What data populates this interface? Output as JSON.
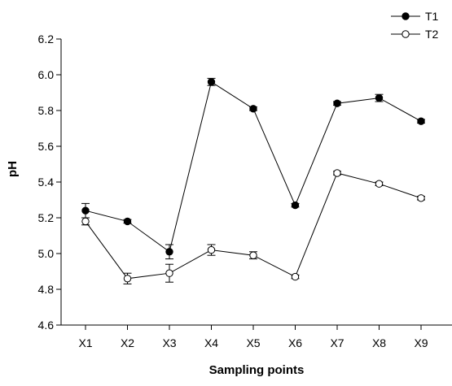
{
  "chart_data": {
    "type": "line",
    "title": "",
    "xlabel": "Sampling points",
    "ylabel": "pH",
    "categories": [
      "X1",
      "X2",
      "X3",
      "X4",
      "X5",
      "X6",
      "X7",
      "X8",
      "X9"
    ],
    "ylim": [
      4.6,
      6.2
    ],
    "yticks": [
      "4.6",
      "4.8",
      "5.0",
      "5.2",
      "5.4",
      "5.6",
      "5.8",
      "6.0",
      "6.2"
    ],
    "grid": false,
    "legend_position": "top-right",
    "series": [
      {
        "name": "T1",
        "marker": "filled-circle",
        "color": "#000000",
        "values": [
          5.24,
          5.18,
          5.01,
          5.96,
          5.81,
          5.27,
          5.84,
          5.87,
          5.74
        ],
        "errors": [
          0.04,
          0.01,
          0.04,
          0.02,
          0.01,
          0.01,
          0.01,
          0.02,
          0.01
        ]
      },
      {
        "name": "T2",
        "marker": "open-circle",
        "color": "#000000",
        "values": [
          5.18,
          4.86,
          4.89,
          5.02,
          4.99,
          4.87,
          5.45,
          5.39,
          5.31
        ],
        "errors": [
          0.02,
          0.03,
          0.05,
          0.03,
          0.02,
          0.01,
          0.01,
          0.01,
          0.01
        ]
      }
    ]
  }
}
